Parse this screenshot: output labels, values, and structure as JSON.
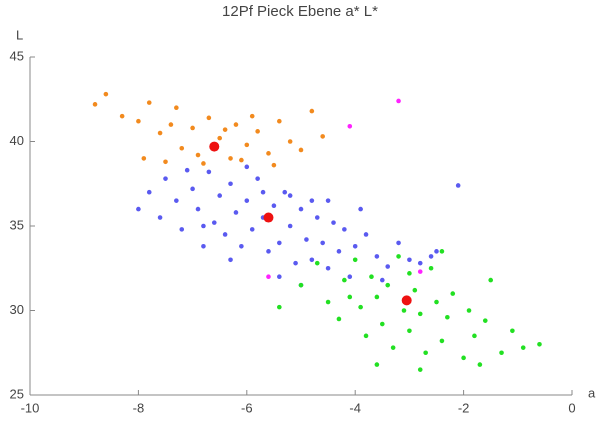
{
  "chart_data": {
    "type": "scatter",
    "title": "12Pf Pieck Ebene a* L*",
    "x_label": "a",
    "y_label": "L",
    "xlim": [
      -10,
      0
    ],
    "xticks": [
      -10,
      -8,
      -6,
      -4,
      -2,
      0
    ],
    "ylim": [
      25,
      45
    ],
    "yticks": [
      25,
      30,
      35,
      40,
      45
    ],
    "series": [
      {
        "color": "#f28a1e",
        "x": [
          -8.8,
          -8.6,
          -8.3,
          -8.0,
          -7.8,
          -7.6,
          -7.4,
          -7.2,
          -7.0,
          -6.9,
          -6.7,
          -6.5,
          -6.3,
          -6.2,
          -6.0,
          -5.8,
          -5.6,
          -5.4,
          -5.2,
          -5.0,
          -4.8,
          -7.9,
          -7.5,
          -6.8,
          -6.1,
          -5.5,
          -4.6,
          -7.3,
          -6.4,
          -5.9
        ],
        "y": [
          42.2,
          42.8,
          41.5,
          41.2,
          42.3,
          40.5,
          41.0,
          39.6,
          40.8,
          39.2,
          41.4,
          40.2,
          39.0,
          41.0,
          39.8,
          40.6,
          39.3,
          41.2,
          40.0,
          39.5,
          41.8,
          39.0,
          38.8,
          38.7,
          38.9,
          38.6,
          40.3,
          42.0,
          40.7,
          41.5
        ]
      },
      {
        "color": "#5a5af0",
        "x": [
          -8.0,
          -7.8,
          -7.6,
          -7.5,
          -7.3,
          -7.2,
          -7.0,
          -6.9,
          -6.8,
          -6.7,
          -6.5,
          -6.4,
          -6.3,
          -6.2,
          -6.1,
          -6.0,
          -5.9,
          -5.8,
          -5.7,
          -5.6,
          -5.5,
          -5.4,
          -5.3,
          -5.2,
          -5.1,
          -5.0,
          -4.9,
          -4.8,
          -4.7,
          -4.6,
          -4.5,
          -4.4,
          -4.3,
          -4.2,
          -4.1,
          -4.0,
          -3.8,
          -3.6,
          -3.4,
          -3.2,
          -3.0,
          -2.8,
          -2.5,
          -2.1,
          -6.6,
          -6.0,
          -5.7,
          -5.2,
          -4.8,
          -7.1,
          -6.3,
          -5.4,
          -4.5,
          -3.9,
          -5.0,
          -6.8,
          -2.6,
          -3.5
        ],
        "y": [
          36.0,
          37.0,
          35.5,
          37.8,
          36.5,
          34.8,
          37.2,
          36.0,
          35.0,
          38.2,
          36.8,
          34.5,
          37.5,
          35.8,
          33.8,
          36.5,
          34.8,
          37.8,
          35.5,
          33.5,
          36.2,
          34.0,
          37.0,
          35.0,
          32.8,
          36.0,
          34.2,
          33.0,
          35.5,
          34.0,
          32.5,
          35.2,
          33.5,
          34.8,
          32.0,
          33.8,
          34.5,
          33.2,
          32.6,
          34.0,
          33.0,
          32.8,
          33.5,
          37.4,
          35.2,
          38.5,
          37.0,
          36.8,
          36.5,
          38.3,
          33.0,
          32.0,
          36.5,
          36.0,
          31.5,
          33.8,
          33.2,
          31.8
        ]
      },
      {
        "color": "#22e022",
        "x": [
          -5.0,
          -4.7,
          -4.5,
          -4.3,
          -4.2,
          -4.0,
          -3.9,
          -3.8,
          -3.7,
          -3.6,
          -3.5,
          -3.4,
          -3.3,
          -3.2,
          -3.1,
          -3.0,
          -2.9,
          -2.8,
          -2.7,
          -2.6,
          -2.5,
          -2.4,
          -2.3,
          -2.2,
          -2.0,
          -1.9,
          -1.8,
          -1.6,
          -1.5,
          -1.3,
          -1.1,
          -0.9,
          -0.6,
          -3.6,
          -3.0,
          -2.4,
          -4.1,
          -2.8,
          -1.7,
          -5.4
        ],
        "y": [
          31.5,
          32.8,
          30.5,
          29.5,
          31.8,
          33.0,
          30.2,
          28.5,
          32.0,
          30.8,
          29.2,
          31.5,
          27.8,
          33.2,
          30.0,
          28.8,
          31.2,
          29.8,
          27.5,
          32.5,
          30.5,
          28.2,
          29.6,
          31.0,
          27.2,
          30.0,
          28.5,
          29.4,
          31.8,
          27.5,
          28.8,
          27.8,
          28.0,
          26.8,
          32.2,
          33.5,
          30.8,
          26.5,
          26.8,
          30.2
        ]
      },
      {
        "color": "#ff22ff",
        "x": [
          -3.2,
          -4.1,
          -5.6,
          -2.8
        ],
        "y": [
          42.4,
          40.9,
          32.0,
          32.3
        ]
      },
      {
        "color": "#ee1111",
        "size": 5,
        "x": [
          -6.6,
          -5.6,
          -3.05
        ],
        "y": [
          39.7,
          35.5,
          30.6
        ]
      }
    ]
  }
}
